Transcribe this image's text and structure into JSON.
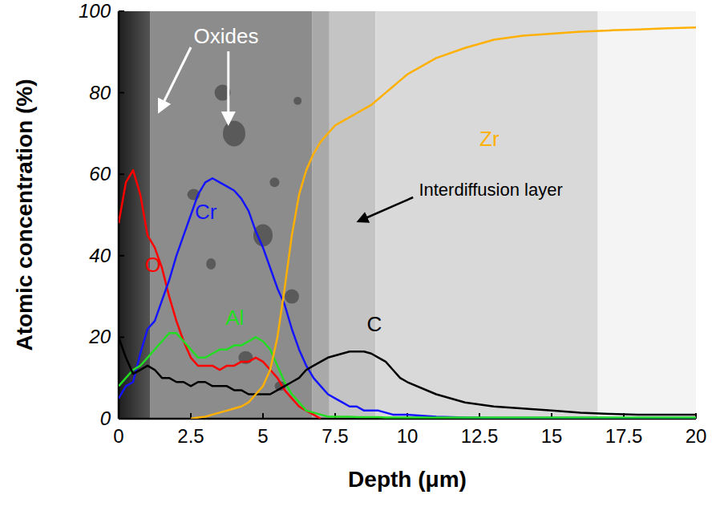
{
  "chart_data": {
    "type": "line",
    "x_label": "Depth (μm)",
    "y_label": "Atomic concentration  (%)",
    "annotations": [
      "Oxides",
      "Interdiffusion layer"
    ],
    "x": [
      0,
      0.25,
      0.5,
      0.75,
      1,
      1.25,
      1.5,
      1.75,
      2,
      2.25,
      2.5,
      2.75,
      3,
      3.25,
      3.5,
      3.75,
      4,
      4.25,
      4.5,
      4.75,
      5,
      5.25,
      5.5,
      5.75,
      6,
      6.25,
      6.5,
      6.75,
      7,
      7.25,
      7.5,
      7.75,
      8,
      8.25,
      8.5,
      8.75,
      9,
      9.25,
      9.5,
      9.75,
      10,
      11,
      12,
      13,
      14,
      15,
      16,
      17,
      18,
      19,
      20
    ],
    "xlim": [
      0,
      20
    ],
    "xticks": [
      0,
      2.5,
      5,
      7.5,
      10,
      12.5,
      15,
      17.5,
      20
    ],
    "ylim": [
      0,
      100
    ],
    "yticks": [
      0,
      20,
      40,
      60,
      80,
      100
    ],
    "grid": false,
    "series": [
      {
        "name": "O",
        "color": "#ff0000",
        "values": [
          48,
          58,
          61,
          55,
          45,
          42,
          37,
          30,
          24,
          19,
          15,
          13,
          13,
          13,
          12,
          13,
          13,
          14,
          14,
          15,
          14,
          12,
          10,
          7,
          5,
          3,
          2,
          1,
          0,
          null,
          null,
          null,
          null,
          null,
          null,
          null,
          null,
          null,
          null,
          null,
          null,
          null,
          null,
          null,
          null,
          null,
          null,
          null,
          null,
          null,
          null
        ]
      },
      {
        "name": "Cr",
        "color": "#1414ff",
        "values": [
          5,
          8,
          9,
          16,
          22,
          24,
          29,
          34,
          40,
          45,
          50,
          55,
          58,
          59,
          58,
          57,
          56,
          54,
          51,
          46,
          42,
          37,
          32,
          28,
          22,
          17,
          13,
          10,
          8,
          6,
          5,
          4,
          3,
          3,
          2,
          2,
          2,
          1.5,
          1,
          1,
          1,
          0.5,
          0.3,
          0.2,
          0.2,
          0.2,
          0.2,
          0.2,
          0.2,
          0.2,
          0.2
        ]
      },
      {
        "name": "Al",
        "color": "#22dd22",
        "values": [
          8,
          10,
          12,
          13,
          15,
          17,
          19,
          21,
          21,
          19,
          17,
          15,
          15,
          16,
          17,
          17,
          18,
          18,
          19,
          20,
          19,
          17,
          13,
          9,
          6,
          4,
          2,
          1.5,
          1,
          0.5,
          0.5,
          0.5,
          0.5,
          0.4,
          0.4,
          0.4,
          0.4,
          0.3,
          0.3,
          0.3,
          0.3,
          0.3,
          0.3,
          0.3,
          0.3,
          0.3,
          0.3,
          0.3,
          0.3,
          0.3,
          0.3
        ]
      },
      {
        "name": "C",
        "color": "#000000",
        "values": [
          20,
          15,
          11,
          12,
          13,
          12,
          10,
          10,
          9,
          9,
          8,
          9,
          9,
          8,
          8,
          8,
          7,
          7,
          6,
          6,
          6,
          6,
          7,
          8,
          9,
          10,
          12,
          13,
          14,
          15,
          15.5,
          16,
          16.5,
          16.5,
          16.5,
          16,
          15,
          14,
          12,
          10,
          9,
          6,
          4,
          3,
          2.5,
          2,
          1.5,
          1.2,
          1,
          1,
          1
        ]
      },
      {
        "name": "Zr",
        "color": "#ffb000",
        "values": [
          null,
          null,
          null,
          null,
          null,
          null,
          null,
          null,
          null,
          null,
          0,
          0.3,
          0.5,
          1,
          1.5,
          2,
          2.5,
          3,
          4,
          6,
          8,
          12,
          20,
          32,
          45,
          55,
          61,
          65,
          68,
          70,
          72,
          73,
          74,
          75,
          76,
          77,
          78.5,
          80,
          81.5,
          83,
          84.5,
          88.5,
          91,
          93,
          94,
          94.5,
          95,
          95.3,
          95.5,
          95.8,
          96
        ]
      }
    ]
  }
}
